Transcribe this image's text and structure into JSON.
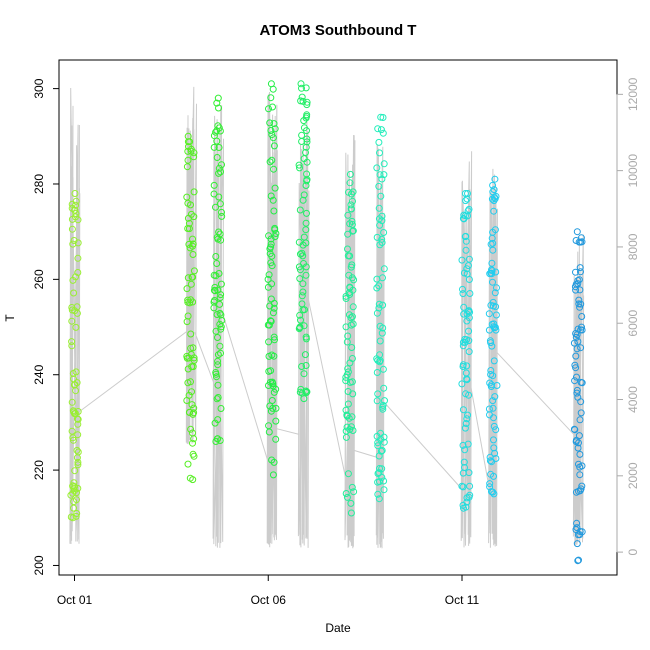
{
  "chart_data": {
    "type": "scatter",
    "title": "ATOM3 Southbound T",
    "xlabel": "Date",
    "ylabel": "T",
    "x_ticks": [
      {
        "label": "Oct 01",
        "day": 1
      },
      {
        "label": "Oct 06",
        "day": 6
      },
      {
        "label": "Oct 11",
        "day": 11
      }
    ],
    "xlim_days": [
      0.6,
      15.0
    ],
    "ylim": [
      198,
      306
    ],
    "y_ticks": [
      200,
      220,
      240,
      260,
      280,
      300
    ],
    "ylim_right": [
      -600,
      12900
    ],
    "y_ticks_right": [
      0,
      2000,
      4000,
      6000,
      8000,
      10000,
      12000
    ],
    "altitude_line_color": "#cccccc",
    "right_axis_color": "#aaaaaa",
    "points_note_colors": [
      "#99ee33",
      "#33ee33",
      "#22ee66",
      "#22eeaa",
      "#22dddd",
      "#22bbee",
      "#2299dd"
    ],
    "legs": [
      {
        "day": 1.0,
        "t_min": 210,
        "t_max": 278,
        "alt_min": 200,
        "alt_max": 12200,
        "color": "#99ee33"
      },
      {
        "day": 4.0,
        "t_min": 218,
        "t_max": 290,
        "alt_min": 2800,
        "alt_max": 12500,
        "color": "#55ee22"
      },
      {
        "day": 4.7,
        "t_min": 226,
        "t_max": 298,
        "alt_min": 100,
        "alt_max": 11800,
        "color": "#33ee33"
      },
      {
        "day": 6.1,
        "t_min": 219,
        "t_max": 301,
        "alt_min": 100,
        "alt_max": 12400,
        "color": "#22ee44"
      },
      {
        "day": 6.9,
        "t_min": 235,
        "t_max": 301,
        "alt_min": 100,
        "alt_max": 12300,
        "color": "#22ee66"
      },
      {
        "day": 8.1,
        "t_min": 211,
        "t_max": 282,
        "alt_min": 100,
        "alt_max": 11500,
        "color": "#22ee99"
      },
      {
        "day": 8.9,
        "t_min": 214,
        "t_max": 294,
        "alt_min": 100,
        "alt_max": 10800,
        "color": "#22eebb"
      },
      {
        "day": 11.1,
        "t_min": 212,
        "t_max": 278,
        "alt_min": 100,
        "alt_max": 10600,
        "color": "#22dddd"
      },
      {
        "day": 11.8,
        "t_min": 215,
        "t_max": 281,
        "alt_min": 100,
        "alt_max": 10200,
        "color": "#22ccee"
      },
      {
        "day": 14.0,
        "t_min": 201,
        "t_max": 270,
        "alt_min": 100,
        "alt_max": 8400,
        "color": "#2299dd"
      }
    ]
  }
}
